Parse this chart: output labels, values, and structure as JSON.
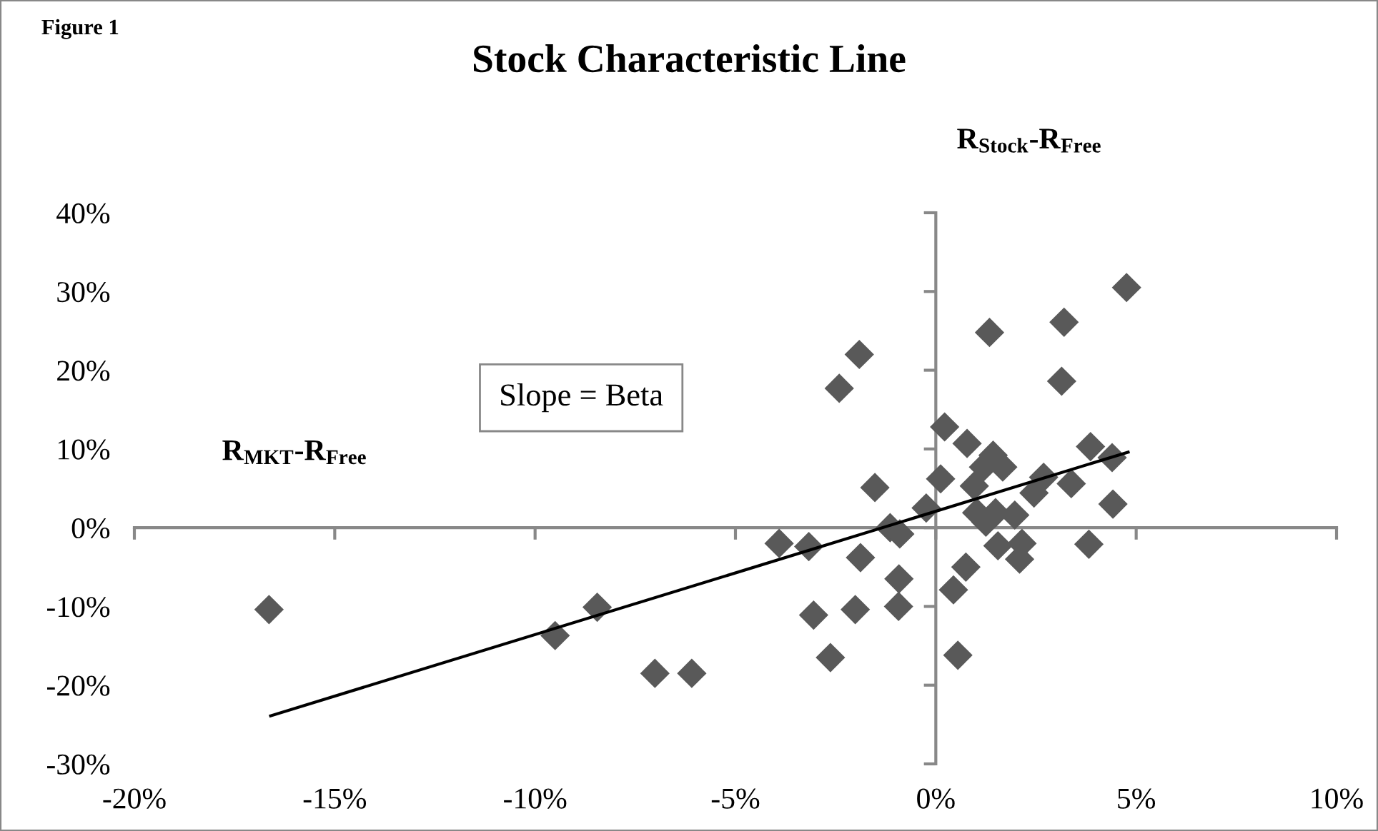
{
  "chart_data": {
    "type": "scatter",
    "title": "Stock Characteristic Line",
    "xlabel": "R$_{MKT}$-R$_{Free}$",
    "ylabel": "R$_{Stock}$-R$_{Free}$",
    "annotations": [
      "Figure 1",
      "Slope = Beta"
    ],
    "series": [
      {
        "color": "#595959",
        "marker": "diamond",
        "x": [
          4.76,
          1.34,
          3.2,
          -1.91,
          -2.41,
          3.14,
          0.22,
          0.78,
          3.86,
          1.43,
          1.67,
          1.19,
          4.4,
          0.12,
          -1.52,
          0.96,
          2.69,
          2.45,
          3.38,
          -0.24,
          1.02,
          1.49,
          1.97,
          1.25,
          4.42,
          -1.14,
          -0.9,
          -3.91,
          -3.17,
          1.55,
          2.15,
          3.82,
          2.09,
          -1.88,
          0.75,
          -0.92,
          0.44,
          -2.01,
          -0.93,
          -3.05,
          -2.63,
          0.55,
          -16.64,
          -9.5,
          -8.45,
          -7.01,
          -6.09
        ],
        "values": [
          30.5,
          24.8,
          26.1,
          22.0,
          17.7,
          18.6,
          12.8,
          10.7,
          10.3,
          9.2,
          7.7,
          7.7,
          8.9,
          6.2,
          5.1,
          5.3,
          6.4,
          4.4,
          5.6,
          2.5,
          1.9,
          1.9,
          1.6,
          0.7,
          3.0,
          0.0,
          -0.8,
          -2.0,
          -2.4,
          -2.3,
          -2.0,
          -2.1,
          -4.0,
          -3.8,
          -5.0,
          -6.5,
          -7.9,
          -10.4,
          -10.0,
          -11.1,
          -16.5,
          -16.2,
          -10.4,
          -13.7,
          -10.1,
          -18.5,
          -18.5
        ]
      },
      {
        "type": "line",
        "color": "#000000",
        "marker": "none",
        "line_style": "solid",
        "x": [
          -16.6,
          4.8
        ],
        "values": [
          -23.9,
          9.6
        ]
      }
    ],
    "xlim": [
      -20,
      10
    ],
    "xticks": [
      {
        "value": -20,
        "label": "-20%"
      },
      {
        "value": -15,
        "label": "-15%"
      },
      {
        "value": -10,
        "label": "-10%"
      },
      {
        "value": -5,
        "label": "-5%"
      },
      {
        "value": 0,
        "label": "0%"
      },
      {
        "value": 5,
        "label": "5%"
      },
      {
        "value": 10,
        "label": "10%"
      }
    ],
    "ylim": [
      -30,
      40
    ],
    "yticks": [
      {
        "value": -30,
        "label": "-30%"
      },
      {
        "value": -20,
        "label": "-20%"
      },
      {
        "value": -10,
        "label": "-10%"
      },
      {
        "value": 0,
        "label": "0%"
      },
      {
        "value": 10,
        "label": "10%"
      },
      {
        "value": 20,
        "label": "20%"
      },
      {
        "value": 30,
        "label": "30%"
      },
      {
        "value": 40,
        "label": "40%"
      }
    ],
    "legend": false
  }
}
